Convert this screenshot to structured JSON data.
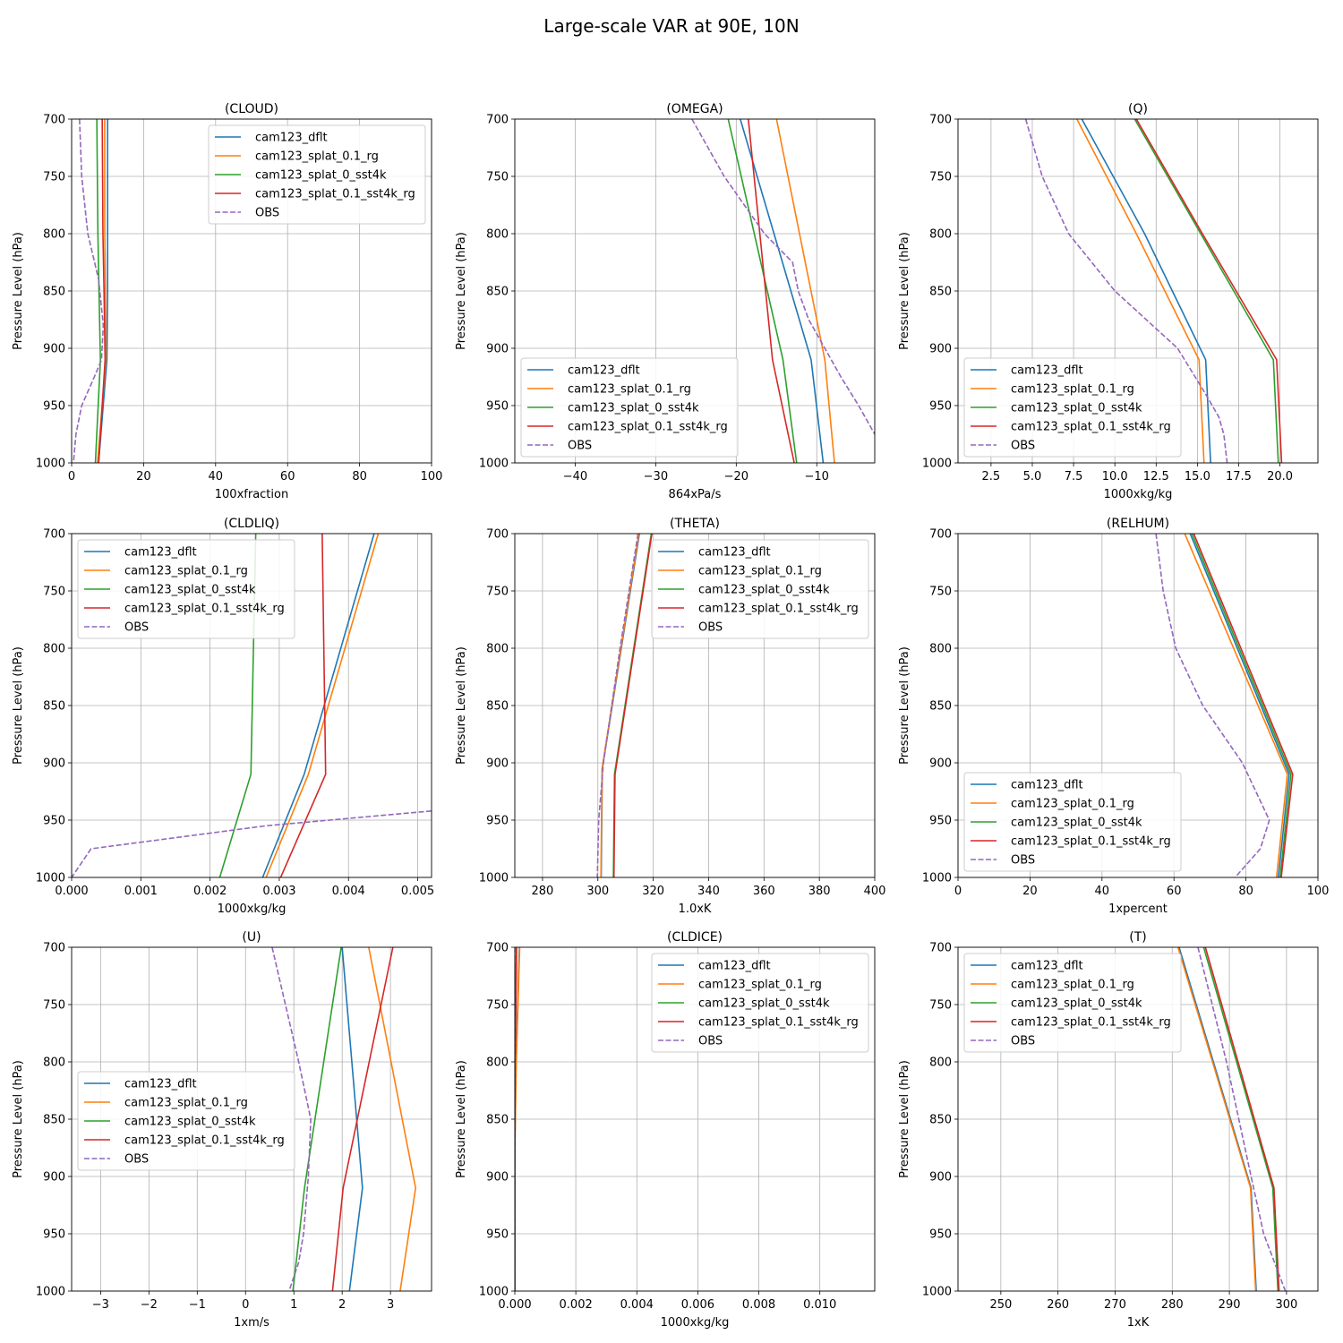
{
  "figure": {
    "title": "Large-scale VAR at 90E, 10N"
  },
  "series_styles": [
    {
      "name": "cam123_dflt",
      "color": "#1f77b4",
      "dashed": false
    },
    {
      "name": "cam123_splat_0.1_rg",
      "color": "#ff7f0e",
      "dashed": false
    },
    {
      "name": "cam123_splat_0_sst4k",
      "color": "#2ca02c",
      "dashed": false
    },
    {
      "name": "cam123_splat_0.1_sst4k_rg",
      "color": "#d62728",
      "dashed": false
    },
    {
      "name": "OBS",
      "color": "#9467bd",
      "dashed": true
    }
  ],
  "chart_data": [
    {
      "id": "cloud",
      "type": "line",
      "title": "(CLOUD)",
      "xlabel": "100xfraction",
      "ylabel": "Pressure Level (hPa)",
      "xlim": [
        0,
        100
      ],
      "ylim": [
        1000,
        700
      ],
      "xticks": [
        0,
        20,
        40,
        60,
        80,
        100
      ],
      "xtick_labels": [
        "0",
        "20",
        "40",
        "60",
        "80",
        "100"
      ],
      "yticks": [
        700,
        750,
        800,
        850,
        900,
        950,
        1000
      ],
      "ytick_labels": [
        "700",
        "750",
        "800",
        "850",
        "900",
        "950",
        "1000"
      ],
      "legend": "upper right",
      "grid": true,
      "series": [
        {
          "name": "cam123_dflt",
          "y": [
            700,
            800,
            850,
            910,
            1000
          ],
          "x": [
            10.0,
            10.0,
            10.0,
            9.8,
            7.5
          ]
        },
        {
          "name": "cam123_splat_0.1_rg",
          "y": [
            700,
            800,
            850,
            910,
            1000
          ],
          "x": [
            9.2,
            9.2,
            9.4,
            9.5,
            7.2
          ]
        },
        {
          "name": "cam123_splat_0_sst4k",
          "y": [
            700,
            800,
            850,
            910,
            1000
          ],
          "x": [
            7.0,
            7.3,
            7.6,
            8.0,
            6.6
          ]
        },
        {
          "name": "cam123_splat_0.1_sst4k_rg",
          "y": [
            700,
            800,
            850,
            910,
            1000
          ],
          "x": [
            8.5,
            8.7,
            9.0,
            9.3,
            7.5
          ]
        },
        {
          "name": "OBS",
          "y": [
            700,
            750,
            800,
            840,
            880,
            910,
            925,
            950,
            975,
            1000
          ],
          "x": [
            2.2,
            2.8,
            4.5,
            7.5,
            8.8,
            8.3,
            6.3,
            2.8,
            1.2,
            0.5
          ]
        }
      ]
    },
    {
      "id": "omega",
      "type": "line",
      "title": "(OMEGA)",
      "xlabel": "864xPa/s",
      "ylabel": "Pressure Level (hPa)",
      "xlim": [
        -47.5,
        -2.8
      ],
      "ylim": [
        1000,
        700
      ],
      "xticks": [
        -40,
        -30,
        -20,
        -10
      ],
      "xtick_labels": [
        "−40",
        "−30",
        "−20",
        "−10"
      ],
      "yticks": [
        700,
        750,
        800,
        850,
        900,
        950,
        1000
      ],
      "ytick_labels": [
        "700",
        "750",
        "800",
        "850",
        "900",
        "950",
        "1000"
      ],
      "legend": "lower left",
      "grid": true,
      "series": [
        {
          "name": "cam123_dflt",
          "y": [
            700,
            910,
            1000
          ],
          "x": [
            -19.5,
            -10.7,
            -9.2
          ]
        },
        {
          "name": "cam123_splat_0.1_rg",
          "y": [
            700,
            910,
            1000
          ],
          "x": [
            -15.0,
            -9.0,
            -7.8
          ]
        },
        {
          "name": "cam123_splat_0_sst4k",
          "y": [
            700,
            910,
            1000
          ],
          "x": [
            -21.0,
            -14.2,
            -12.5
          ]
        },
        {
          "name": "cam123_splat_0.1_sst4k_rg",
          "y": [
            700,
            910,
            1000
          ],
          "x": [
            -18.5,
            -15.5,
            -12.8
          ]
        },
        {
          "name": "OBS",
          "y": [
            700,
            750,
            800,
            825,
            850,
            875,
            900,
            925,
            950,
            975
          ],
          "x": [
            -25.5,
            -21.5,
            -16.5,
            -13.0,
            -12.3,
            -11.0,
            -9.0,
            -7.0,
            -4.8,
            -2.8
          ]
        }
      ]
    },
    {
      "id": "q",
      "type": "line",
      "title": "(Q)",
      "xlabel": "1000xkg/kg",
      "ylabel": "Pressure Level (hPa)",
      "xlim": [
        0.5,
        22.3
      ],
      "ylim": [
        1000,
        700
      ],
      "xticks": [
        2.5,
        5.0,
        7.5,
        10.0,
        12.5,
        15.0,
        17.5,
        20.0
      ],
      "xtick_labels": [
        "2.5",
        "5.0",
        "7.5",
        "10.0",
        "12.5",
        "15.0",
        "17.5",
        "20.0"
      ],
      "yticks": [
        700,
        750,
        800,
        850,
        900,
        950,
        1000
      ],
      "ytick_labels": [
        "700",
        "750",
        "800",
        "850",
        "900",
        "950",
        "1000"
      ],
      "legend": "lower left",
      "grid": true,
      "series": [
        {
          "name": "cam123_dflt",
          "y": [
            700,
            800,
            910,
            1000
          ],
          "x": [
            8.0,
            11.8,
            15.5,
            15.8
          ]
        },
        {
          "name": "cam123_splat_0.1_rg",
          "y": [
            700,
            800,
            910,
            1000
          ],
          "x": [
            7.7,
            11.3,
            15.1,
            15.4
          ]
        },
        {
          "name": "cam123_splat_0_sst4k",
          "y": [
            700,
            800,
            910,
            1000
          ],
          "x": [
            11.2,
            15.2,
            19.6,
            19.9
          ]
        },
        {
          "name": "cam123_splat_0.1_sst4k_rg",
          "y": [
            700,
            800,
            910,
            1000
          ],
          "x": [
            11.3,
            15.3,
            19.8,
            20.1
          ]
        },
        {
          "name": "OBS",
          "y": [
            700,
            750,
            800,
            850,
            900,
            940,
            960,
            975,
            1000
          ],
          "x": [
            4.6,
            5.6,
            7.2,
            10.0,
            13.8,
            15.5,
            16.3,
            16.6,
            16.8
          ]
        }
      ]
    },
    {
      "id": "cldliq",
      "type": "line",
      "title": "(CLDLIQ)",
      "xlabel": "1000xkg/kg",
      "ylabel": "Pressure Level (hPa)",
      "xlim": [
        0,
        0.0052
      ],
      "ylim": [
        1000,
        700
      ],
      "xticks": [
        0,
        0.001,
        0.002,
        0.003,
        0.004,
        0.005
      ],
      "xtick_labels": [
        "0.000",
        "0.001",
        "0.002",
        "0.003",
        "0.004",
        "0.005"
      ],
      "yticks": [
        700,
        750,
        800,
        850,
        900,
        950,
        1000
      ],
      "ytick_labels": [
        "700",
        "750",
        "800",
        "850",
        "900",
        "950",
        "1000"
      ],
      "legend": "upper left",
      "grid": true,
      "series": [
        {
          "name": "cam123_dflt",
          "y": [
            700,
            910,
            1000
          ],
          "x": [
            0.00437,
            0.00336,
            0.00276
          ]
        },
        {
          "name": "cam123_splat_0.1_rg",
          "y": [
            700,
            910,
            1000
          ],
          "x": [
            0.00443,
            0.00342,
            0.00281
          ]
        },
        {
          "name": "cam123_splat_0_sst4k",
          "y": [
            700,
            910,
            1000
          ],
          "x": [
            0.00266,
            0.00259,
            0.00214
          ]
        },
        {
          "name": "cam123_splat_0.1_sst4k_rg",
          "y": [
            700,
            910,
            1000
          ],
          "x": [
            0.00362,
            0.00367,
            0.00302
          ]
        },
        {
          "name": "OBS",
          "y": [
            942,
            955,
            975,
            1000
          ],
          "x": [
            0.0052,
            0.0028,
            0.00028,
            0.0
          ]
        }
      ]
    },
    {
      "id": "theta",
      "type": "line",
      "title": "(THETA)",
      "xlabel": "1.0xK",
      "ylabel": "Pressure Level (hPa)",
      "xlim": [
        270,
        400
      ],
      "ylim": [
        1000,
        700
      ],
      "xticks": [
        280,
        300,
        320,
        340,
        360,
        380,
        400
      ],
      "xtick_labels": [
        "280",
        "300",
        "320",
        "340",
        "360",
        "380",
        "400"
      ],
      "yticks": [
        700,
        750,
        800,
        850,
        900,
        950,
        1000
      ],
      "ytick_labels": [
        "700",
        "750",
        "800",
        "850",
        "900",
        "950",
        "1000"
      ],
      "legend": "upper right",
      "grid": true,
      "series": [
        {
          "name": "cam123_dflt",
          "y": [
            700,
            905,
            1000
          ],
          "x": [
            315.0,
            301.6,
            301.2
          ]
        },
        {
          "name": "cam123_splat_0.1_rg",
          "y": [
            700,
            905,
            1000
          ],
          "x": [
            314.8,
            301.5,
            301.1
          ]
        },
        {
          "name": "cam123_splat_0_sst4k",
          "y": [
            700,
            910,
            1000
          ],
          "x": [
            319.3,
            306.0,
            305.6
          ]
        },
        {
          "name": "cam123_splat_0.1_sst4k_rg",
          "y": [
            700,
            910,
            1000
          ],
          "x": [
            319.5,
            306.2,
            305.8
          ]
        },
        {
          "name": "OBS",
          "y": [
            700,
            800,
            900,
            950,
            1000
          ],
          "x": [
            314.5,
            308.0,
            302.0,
            300.3,
            299.8
          ]
        }
      ]
    },
    {
      "id": "relhum",
      "type": "line",
      "title": "(RELHUM)",
      "xlabel": "1xpercent",
      "ylabel": "Pressure Level (hPa)",
      "xlim": [
        0,
        100
      ],
      "ylim": [
        1000,
        700
      ],
      "xticks": [
        0,
        20,
        40,
        60,
        80,
        100
      ],
      "xtick_labels": [
        "0",
        "20",
        "40",
        "60",
        "80",
        "100"
      ],
      "yticks": [
        700,
        750,
        800,
        850,
        900,
        950,
        1000
      ],
      "ytick_labels": [
        "700",
        "750",
        "800",
        "850",
        "900",
        "950",
        "1000"
      ],
      "legend": "lower left",
      "grid": true,
      "series": [
        {
          "name": "cam123_dflt",
          "y": [
            700,
            910,
            1000
          ],
          "x": [
            64.5,
            92.0,
            89.0
          ]
        },
        {
          "name": "cam123_splat_0.1_rg",
          "y": [
            700,
            910,
            1000
          ],
          "x": [
            63.0,
            91.5,
            88.5
          ]
        },
        {
          "name": "cam123_splat_0_sst4k",
          "y": [
            700,
            910,
            1000
          ],
          "x": [
            65.0,
            92.5,
            89.5
          ]
        },
        {
          "name": "cam123_splat_0.1_sst4k_rg",
          "y": [
            700,
            910,
            1000
          ],
          "x": [
            65.5,
            93.0,
            89.8
          ]
        },
        {
          "name": "OBS",
          "y": [
            700,
            750,
            800,
            850,
            900,
            950,
            975,
            1000
          ],
          "x": [
            55.0,
            57.0,
            60.5,
            68.0,
            79.0,
            86.5,
            84.0,
            77.0
          ]
        }
      ]
    },
    {
      "id": "u",
      "type": "line",
      "title": "(U)",
      "xlabel": "1xm/s",
      "ylabel": "Pressure Level (hPa)",
      "xlim": [
        -3.6,
        3.85
      ],
      "ylim": [
        1000,
        700
      ],
      "xticks": [
        -3,
        -2,
        -1,
        0,
        1,
        2,
        3
      ],
      "xtick_labels": [
        "−3",
        "−2",
        "−1",
        "0",
        "1",
        "2",
        "3"
      ],
      "yticks": [
        700,
        750,
        800,
        850,
        900,
        950,
        1000
      ],
      "ytick_labels": [
        "700",
        "750",
        "800",
        "850",
        "900",
        "950",
        "1000"
      ],
      "legend": "center left",
      "grid": true,
      "series": [
        {
          "name": "cam123_dflt",
          "y": [
            700,
            910,
            1000
          ],
          "x": [
            2.0,
            2.42,
            2.15
          ]
        },
        {
          "name": "cam123_splat_0.1_rg",
          "y": [
            700,
            910,
            1000
          ],
          "x": [
            2.55,
            3.52,
            3.2
          ]
        },
        {
          "name": "cam123_splat_0_sst4k",
          "y": [
            700,
            910,
            1000
          ],
          "x": [
            1.98,
            1.22,
            0.98
          ]
        },
        {
          "name": "cam123_splat_0.1_sst4k_rg",
          "y": [
            700,
            910,
            1000
          ],
          "x": [
            3.05,
            2.02,
            1.8
          ]
        },
        {
          "name": "OBS",
          "y": [
            700,
            800,
            850,
            900,
            950,
            975,
            1000
          ],
          "x": [
            0.55,
            1.1,
            1.35,
            1.3,
            1.2,
            1.1,
            0.9
          ]
        }
      ]
    },
    {
      "id": "cldice",
      "type": "line",
      "title": "(CLDICE)",
      "xlabel": "1000xkg/kg",
      "ylabel": "Pressure Level (hPa)",
      "xlim": [
        0,
        0.0118
      ],
      "ylim": [
        1000,
        700
      ],
      "xticks": [
        0,
        0.002,
        0.004,
        0.006,
        0.008,
        0.01
      ],
      "xtick_labels": [
        "0.000",
        "0.002",
        "0.004",
        "0.006",
        "0.008",
        "0.010"
      ],
      "yticks": [
        700,
        750,
        800,
        850,
        900,
        950,
        1000
      ],
      "ytick_labels": [
        "700",
        "750",
        "800",
        "850",
        "900",
        "950",
        "1000"
      ],
      "legend": "upper right",
      "grid": true,
      "series": [
        {
          "name": "cam123_dflt",
          "y": [
            700,
            800,
            880,
            1000
          ],
          "x": [
            0.00015,
            4e-05,
            0.0,
            0.0
          ]
        },
        {
          "name": "cam123_splat_0.1_rg",
          "y": [
            700,
            800,
            880,
            1000
          ],
          "x": [
            0.00016,
            5e-05,
            0.0,
            0.0
          ]
        },
        {
          "name": "cam123_splat_0_sst4k",
          "y": [
            700,
            800,
            880,
            1000
          ],
          "x": [
            5e-05,
            1e-05,
            0.0,
            0.0
          ]
        },
        {
          "name": "cam123_splat_0.1_sst4k_rg",
          "y": [
            700,
            800,
            880,
            1000
          ],
          "x": [
            6e-05,
            1e-05,
            0.0,
            0.0
          ]
        },
        {
          "name": "OBS",
          "y": [
            700,
            1000
          ],
          "x": [
            0.0,
            0.0
          ]
        }
      ]
    },
    {
      "id": "t",
      "type": "line",
      "title": "(T)",
      "xlabel": "1xK",
      "ylabel": "Pressure Level (hPa)",
      "xlim": [
        242.5,
        305.5
      ],
      "ylim": [
        1000,
        700
      ],
      "xticks": [
        250,
        260,
        270,
        280,
        290,
        300
      ],
      "xtick_labels": [
        "250",
        "260",
        "270",
        "280",
        "290",
        "300"
      ],
      "yticks": [
        700,
        750,
        800,
        850,
        900,
        950,
        1000
      ],
      "ytick_labels": [
        "700",
        "750",
        "800",
        "850",
        "900",
        "950",
        "1000"
      ],
      "legend": "upper left",
      "grid": true,
      "series": [
        {
          "name": "cam123_dflt",
          "y": [
            700,
            910,
            1000
          ],
          "x": [
            281.2,
            293.8,
            294.7
          ]
        },
        {
          "name": "cam123_splat_0.1_rg",
          "y": [
            700,
            910,
            1000
          ],
          "x": [
            281.0,
            293.7,
            294.6
          ]
        },
        {
          "name": "cam123_splat_0_sst4k",
          "y": [
            700,
            910,
            1000
          ],
          "x": [
            285.5,
            297.6,
            298.5
          ]
        },
        {
          "name": "cam123_splat_0.1_sst4k_rg",
          "y": [
            700,
            910,
            1000
          ],
          "x": [
            285.8,
            297.8,
            298.7
          ]
        },
        {
          "name": "OBS",
          "y": [
            700,
            800,
            900,
            950,
            1000
          ],
          "x": [
            284.5,
            289.5,
            293.8,
            296.0,
            299.8
          ]
        }
      ]
    }
  ]
}
